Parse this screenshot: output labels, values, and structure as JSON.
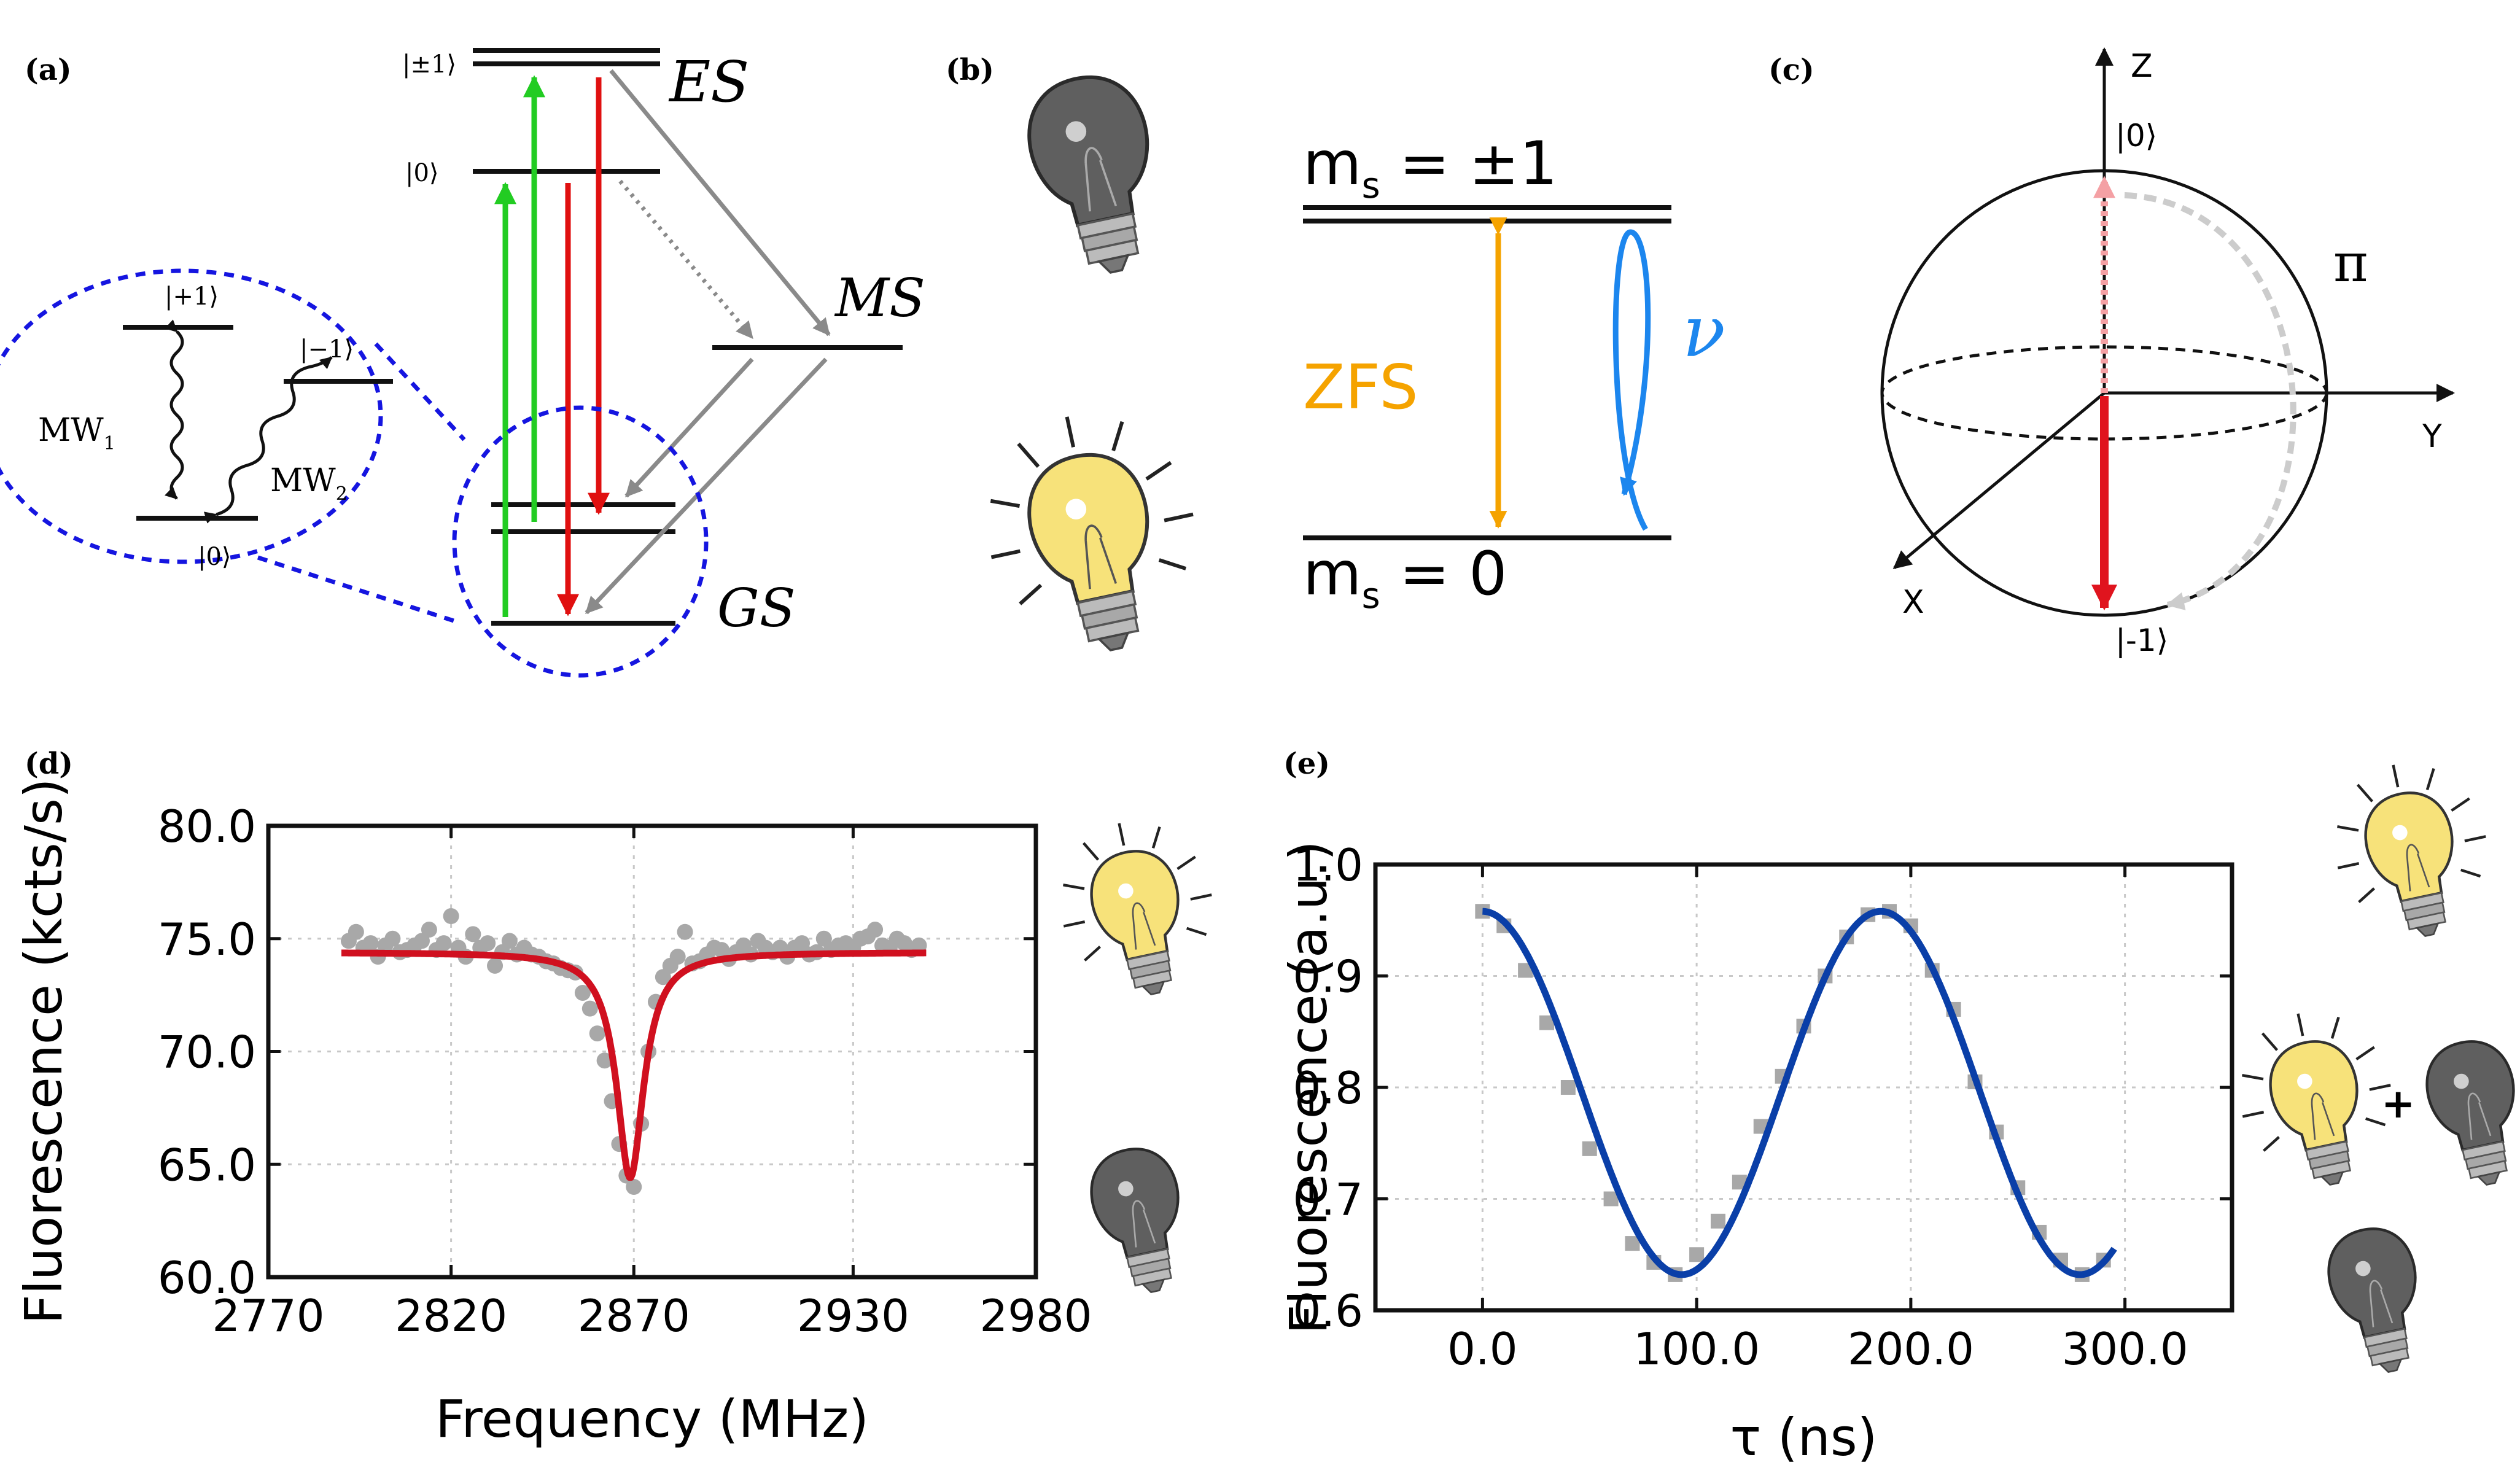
{
  "panels": {
    "a": {
      "label": "(a)",
      "states": {
        "es_pm1": "|±1⟩",
        "es_0": "|0⟩",
        "inset_p1": "|+1⟩",
        "inset_m1": "|−1⟩",
        "inset_0": "|0⟩"
      },
      "level_labels": {
        "es": "ES",
        "ms": "MS",
        "gs": "GS"
      },
      "mw1": {
        "base": "MW",
        "sub": "1"
      },
      "mw2": {
        "base": "MW",
        "sub": "2"
      },
      "colors": {
        "pump": "#22cc22",
        "fluor": "#e01010",
        "decay": "#8a8a8a",
        "inset": "#1515e0"
      }
    },
    "b": {
      "label": "(b)",
      "upper": {
        "base": "m",
        "sub": "s",
        "rest": " = ±1"
      },
      "lower": {
        "base": "m",
        "sub": "s",
        "rest": " = 0"
      },
      "zfs": "ZFS",
      "nu": "ν",
      "colors": {
        "zfs": "#f5a300",
        "nu": "#1c86ee"
      }
    },
    "c": {
      "label": "(c)",
      "axes": {
        "z": "Z",
        "y": "Y",
        "x": "X"
      },
      "top_state": "|0⟩",
      "bottom_state": "|-1⟩",
      "rotation": "π",
      "colors": {
        "vector": "#e0141e",
        "vector_faded": "#f4a0a4",
        "path": "#cccccc"
      }
    },
    "d": {
      "label": "(d)"
    },
    "e": {
      "label": "(e)"
    }
  },
  "chart_data": [
    {
      "type": "scatter",
      "panel": "d",
      "xlabel": "Frequency (MHz)",
      "ylabel": "Fluorescence (kcts/s)",
      "xlim": [
        2770,
        2980
      ],
      "ylim": [
        60.0,
        80.0
      ],
      "xticks": [
        2770,
        2820,
        2870,
        2930,
        2980
      ],
      "yticks": [
        60.0,
        65.0,
        70.0,
        75.0,
        80.0
      ],
      "xtick_labels": [
        "2770",
        "2820",
        "2870",
        "2930",
        "2980"
      ],
      "ytick_labels": [
        "60.0",
        "65.0",
        "70.0",
        "75.0",
        "80.0"
      ],
      "grid": true,
      "series": [
        {
          "kind": "points",
          "color": "#a8a8a8",
          "x": [
            2792,
            2794,
            2796,
            2798,
            2800,
            2802,
            2804,
            2806,
            2808,
            2810,
            2812,
            2814,
            2816,
            2818,
            2820,
            2822,
            2824,
            2826,
            2828,
            2830,
            2832,
            2834,
            2836,
            2838,
            2840,
            2842,
            2844,
            2846,
            2848,
            2850,
            2852,
            2854,
            2856,
            2858,
            2860,
            2862,
            2864,
            2866,
            2868,
            2870,
            2872,
            2874,
            2876,
            2878,
            2880,
            2882,
            2884,
            2886,
            2888,
            2890,
            2892,
            2894,
            2896,
            2898,
            2900,
            2902,
            2904,
            2906,
            2908,
            2910,
            2912,
            2914,
            2916,
            2918,
            2920,
            2922,
            2924,
            2926,
            2928,
            2930,
            2932,
            2934,
            2936,
            2938,
            2940,
            2942,
            2944,
            2946,
            2948
          ],
          "y": [
            74.9,
            75.3,
            74.6,
            74.8,
            74.2,
            74.7,
            75.0,
            74.4,
            74.5,
            74.7,
            74.9,
            75.4,
            74.5,
            74.8,
            76.0,
            74.6,
            74.2,
            75.2,
            74.6,
            74.8,
            73.8,
            74.4,
            74.9,
            74.3,
            74.6,
            74.3,
            74.2,
            74.0,
            73.9,
            73.7,
            73.6,
            73.5,
            72.6,
            71.9,
            70.8,
            69.6,
            67.8,
            65.9,
            64.5,
            64.0,
            66.8,
            70.0,
            72.2,
            73.3,
            73.8,
            74.2,
            75.3,
            73.9,
            74.0,
            74.3,
            74.6,
            74.5,
            74.1,
            74.4,
            74.7,
            74.3,
            74.9,
            74.6,
            74.4,
            74.6,
            74.2,
            74.6,
            74.8,
            74.3,
            74.4,
            75.0,
            74.5,
            74.7,
            74.8,
            74.6,
            75.0,
            75.1,
            75.4,
            74.7,
            74.6,
            75.0,
            74.8,
            74.5,
            74.7
          ]
        },
        {
          "kind": "line",
          "color": "#d0101f",
          "model": "lorentzian",
          "center": 2869,
          "width": 4.5,
          "depth": 10.0,
          "baseline": 74.4,
          "range": [
            2790,
            2950
          ]
        }
      ]
    },
    {
      "type": "scatter",
      "panel": "e",
      "xlabel": "τ (ns)",
      "ylabel": "Fluorescence (a.u.)",
      "xlim": [
        -50,
        350
      ],
      "ylim": [
        0.6,
        1.0
      ],
      "xticks": [
        0.0,
        100.0,
        200.0,
        300.0
      ],
      "yticks": [
        0.6,
        0.7,
        0.8,
        0.9,
        1.0
      ],
      "xtick_labels": [
        "0.0",
        "100.0",
        "200.0",
        "300.0"
      ],
      "ytick_labels": [
        "0.6",
        "0.7",
        "0.8",
        "0.9",
        "1.0"
      ],
      "grid": true,
      "series": [
        {
          "kind": "points",
          "color": "#a8a8a8",
          "x": [
            0,
            10,
            20,
            30,
            40,
            50,
            60,
            70,
            80,
            90,
            100,
            110,
            120,
            130,
            140,
            150,
            160,
            170,
            180,
            190,
            200,
            210,
            220,
            230,
            240,
            250,
            260,
            270,
            280,
            290
          ],
          "y": [
            0.958,
            0.945,
            0.905,
            0.858,
            0.8,
            0.745,
            0.7,
            0.66,
            0.643,
            0.632,
            0.65,
            0.68,
            0.715,
            0.765,
            0.81,
            0.855,
            0.9,
            0.935,
            0.955,
            0.958,
            0.945,
            0.905,
            0.87,
            0.805,
            0.76,
            0.71,
            0.67,
            0.645,
            0.632,
            0.645
          ]
        },
        {
          "kind": "line",
          "color": "#0a3fa8",
          "model": "cosine",
          "mean": 0.795,
          "amplitude": 0.163,
          "period": 186,
          "range": [
            0,
            295
          ]
        }
      ]
    }
  ]
}
